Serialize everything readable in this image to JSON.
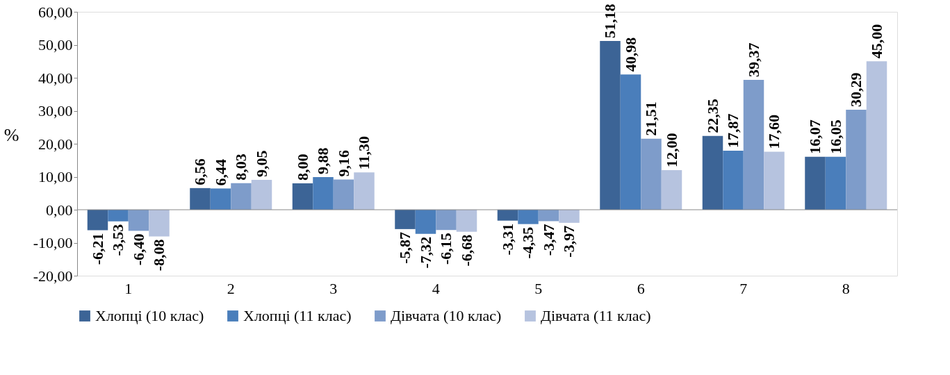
{
  "chart_data": {
    "type": "bar",
    "ylabel": "%",
    "categories": [
      "1",
      "2",
      "3",
      "4",
      "5",
      "6",
      "7",
      "8"
    ],
    "series": [
      {
        "name": "Хлопці (10 клас)",
        "color": "#3c6496",
        "values": [
          -6.21,
          6.56,
          8.0,
          -5.87,
          -3.31,
          51.18,
          22.35,
          16.07
        ],
        "value_labels": [
          "-6,21",
          "6,56",
          "8,00",
          "-5,87",
          "-3,31",
          "51,18",
          "22,35",
          "16,07"
        ]
      },
      {
        "name": "Хлопці (11 клас)",
        "color": "#4a7ebb",
        "values": [
          -3.53,
          6.44,
          9.88,
          -7.32,
          -4.35,
          40.98,
          17.87,
          16.05
        ],
        "value_labels": [
          "-3,53",
          "6,44",
          "9,88",
          "-7,32",
          "-4,35",
          "40,98",
          "17,87",
          "16,05"
        ]
      },
      {
        "name": "Дівчата (10 клас)",
        "color": "#7e9cca",
        "values": [
          -6.4,
          8.03,
          9.16,
          -6.15,
          -3.47,
          21.51,
          39.37,
          30.29
        ],
        "value_labels": [
          "-6,40",
          "8,03",
          "9,16",
          "-6,15",
          "-3,47",
          "21,51",
          "39,37",
          "30,29"
        ]
      },
      {
        "name": "Дівчата (11 клас)",
        "color": "#b6c3df",
        "values": [
          -8.08,
          9.05,
          11.3,
          -6.68,
          -3.97,
          12.0,
          17.6,
          45.0
        ],
        "value_labels": [
          "-8,08",
          "9,05",
          "11,30",
          "-6,68",
          "-3,97",
          "12,00",
          "17,60",
          "45,00"
        ]
      }
    ],
    "ylim": [
      -20,
      60
    ],
    "yticks": [
      {
        "value": -20,
        "label": "-20,00"
      },
      {
        "value": -10,
        "label": "-10,00"
      },
      {
        "value": 0,
        "label": "0,00"
      },
      {
        "value": 10,
        "label": "10,00"
      },
      {
        "value": 20,
        "label": "20,00"
      },
      {
        "value": 30,
        "label": "30,00"
      },
      {
        "value": 40,
        "label": "40,00"
      },
      {
        "value": 50,
        "label": "50,00"
      },
      {
        "value": 60,
        "label": "60,00"
      }
    ],
    "grid": false,
    "legend": "bottom",
    "ref_lines": [
      {
        "axis": "y",
        "value": 0,
        "color": "#888888"
      }
    ]
  }
}
